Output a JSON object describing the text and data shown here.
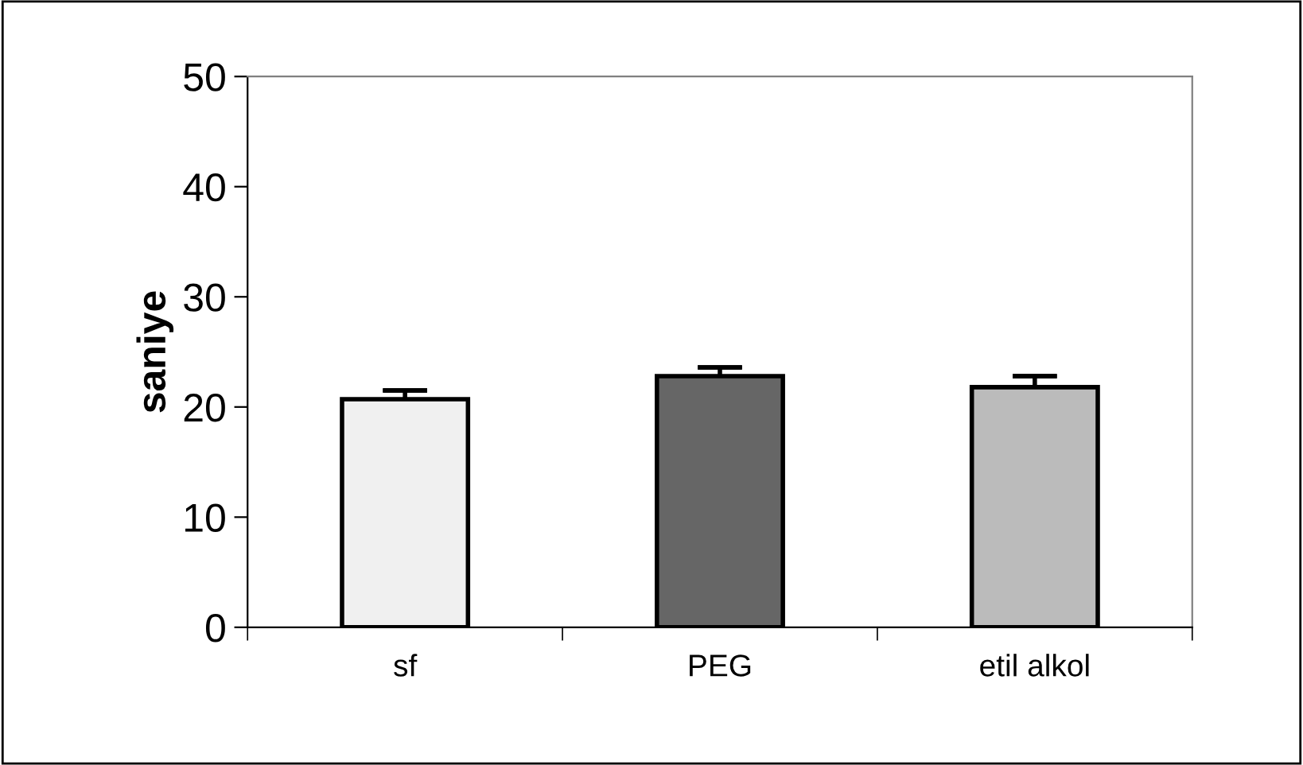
{
  "chart_data": {
    "type": "bar",
    "ylabel": "saniye",
    "categories": [
      "sf",
      "PEG",
      "etil alkol"
    ],
    "values": [
      20.7,
      22.8,
      21.8
    ],
    "errors": [
      [
        20.7,
        21.5
      ],
      [
        22.8,
        23.6
      ],
      [
        21.8,
        22.8
      ]
    ],
    "colors": [
      "#f0f0f0",
      "#666666",
      "#bbbbbb"
    ],
    "ylim": [
      0,
      50
    ],
    "yticks": [
      0,
      10,
      20,
      30,
      40,
      50
    ],
    "grid": false,
    "legend": false
  }
}
